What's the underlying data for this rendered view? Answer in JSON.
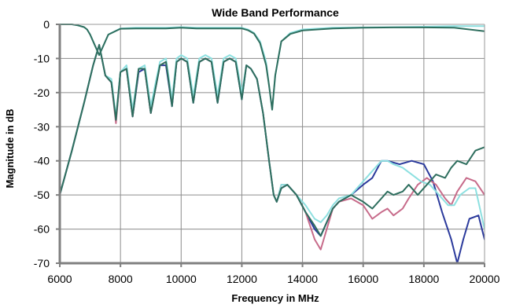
{
  "chart_data": {
    "type": "line",
    "title": "Wide Band Performance",
    "xlabel": "Frequency in MHz",
    "ylabel": "Magnitude in dB",
    "xlim": [
      6000,
      20000
    ],
    "ylim": [
      -70,
      0
    ],
    "x_ticks": [
      "6000",
      "8000",
      "10000",
      "12000",
      "14000",
      "16000",
      "18000",
      "20000"
    ],
    "y_ticks": [
      "0",
      "-10",
      "-20",
      "-30",
      "-40",
      "-50",
      "-60",
      "-70"
    ],
    "grid": true,
    "legend": "none",
    "series": [
      {
        "color": "#2b3a9c",
        "x": [
          6000,
          6400,
          6800,
          7100,
          7300,
          7500,
          7700,
          7850,
          8000,
          8200,
          8400,
          8600,
          8800,
          9000,
          9300,
          9500,
          9700,
          9850,
          10000,
          10200,
          10400,
          10600,
          10800,
          11000,
          11200,
          11400,
          11600,
          11800,
          12000,
          12150,
          12300,
          12500,
          12700,
          12900,
          13050,
          13150,
          13300,
          13500,
          13800,
          14100,
          14400,
          14600,
          14800,
          15000,
          15200,
          15600,
          16000,
          16300,
          16600,
          16800,
          17200,
          17600,
          18000,
          18300,
          18600,
          18900,
          19100,
          19300,
          19500,
          19800,
          20000
        ],
        "y": [
          -50,
          -37,
          -23,
          -12,
          -6,
          -15,
          -17,
          -28,
          -14,
          -13,
          -27,
          -14,
          -13,
          -26,
          -12,
          -12,
          -24,
          -11,
          -10,
          -11,
          -23,
          -11,
          -10,
          -11,
          -23,
          -11,
          -10,
          -11,
          -22,
          -12,
          -13,
          -16,
          -26,
          -40,
          -50,
          -52,
          -48,
          -47,
          -50,
          -55,
          -60,
          -62,
          -58,
          -54,
          -52,
          -50,
          -47,
          -45,
          -40,
          -40,
          -41,
          -40,
          -41,
          -46,
          -55,
          -63,
          -70,
          -63,
          -57,
          -56,
          -63
        ]
      },
      {
        "color": "#c76b8a",
        "x": [
          6000,
          6400,
          6800,
          7100,
          7300,
          7500,
          7700,
          7850,
          8000,
          8200,
          8400,
          8600,
          8800,
          9000,
          9300,
          9500,
          9700,
          9850,
          10000,
          10200,
          10400,
          10600,
          10800,
          11000,
          11200,
          11400,
          11600,
          11800,
          12000,
          12150,
          12300,
          12500,
          12700,
          12900,
          13050,
          13150,
          13300,
          13500,
          13800,
          14100,
          14400,
          14600,
          14800,
          15000,
          15200,
          15600,
          16000,
          16300,
          16600,
          16800,
          17000,
          17300,
          17500,
          17800,
          18100,
          18400,
          18700,
          18900,
          19100,
          19400,
          19700,
          20000
        ],
        "y": [
          -50,
          -37,
          -23,
          -12,
          -6,
          -15,
          -17,
          -29,
          -14,
          -13,
          -27,
          -13,
          -13,
          -26,
          -12,
          -11,
          -22,
          -11,
          -10,
          -11,
          -22,
          -11,
          -10,
          -11,
          -22,
          -11,
          -10,
          -11,
          -21,
          -12,
          -13,
          -16,
          -26,
          -40,
          -50,
          -52,
          -47,
          -47,
          -50,
          -55,
          -63,
          -66,
          -60,
          -54,
          -52,
          -51,
          -53,
          -57,
          -55,
          -54,
          -56,
          -54,
          -51,
          -47,
          -45,
          -47,
          -51,
          -53,
          -49,
          -45,
          -46,
          -50
        ]
      },
      {
        "color": "#8de0e0",
        "x": [
          6000,
          6400,
          6800,
          7100,
          7300,
          7500,
          7700,
          7850,
          8000,
          8200,
          8400,
          8600,
          8800,
          9000,
          9300,
          9500,
          9700,
          9850,
          10000,
          10200,
          10400,
          10600,
          10800,
          11000,
          11200,
          11400,
          11600,
          11800,
          12000,
          12150,
          12300,
          12500,
          12700,
          12900,
          13050,
          13150,
          13300,
          13500,
          13800,
          14100,
          14400,
          14600,
          14800,
          15000,
          15200,
          15600,
          16000,
          16300,
          16600,
          16800,
          17000,
          17300,
          17600,
          17900,
          18200,
          18500,
          18800,
          19000,
          19200,
          19500,
          19700,
          20000
        ],
        "y": [
          -50,
          -37,
          -23,
          -12,
          -6,
          -15,
          -16,
          -27,
          -14,
          -12,
          -25,
          -13,
          -12,
          -24,
          -11,
          -10,
          -22,
          -10,
          -9,
          -10,
          -21,
          -10,
          -9,
          -10,
          -21,
          -10,
          -9,
          -10,
          -20,
          -12,
          -13,
          -16,
          -26,
          -40,
          -50,
          -52,
          -47,
          -47,
          -50,
          -53,
          -57,
          -58,
          -56,
          -53,
          -51,
          -50,
          -46,
          -43,
          -40,
          -40,
          -41,
          -42,
          -44,
          -46,
          -47,
          -50,
          -53,
          -53,
          -50,
          -48,
          -48,
          -60
        ]
      },
      {
        "color": "#2e6e5e",
        "x": [
          6000,
          6400,
          6800,
          7100,
          7300,
          7500,
          7700,
          7850,
          8000,
          8200,
          8400,
          8600,
          8800,
          9000,
          9300,
          9500,
          9700,
          9850,
          10000,
          10200,
          10400,
          10600,
          10800,
          11000,
          11200,
          11400,
          11600,
          11800,
          12000,
          12150,
          12300,
          12500,
          12700,
          12900,
          13050,
          13150,
          13300,
          13500,
          13800,
          14100,
          14400,
          14600,
          14800,
          15000,
          15200,
          15600,
          16000,
          16300,
          16600,
          16800,
          17000,
          17300,
          17500,
          17800,
          18100,
          18400,
          18700,
          18900,
          19100,
          19400,
          19700,
          20000
        ],
        "y": [
          -50,
          -37,
          -23,
          -12,
          -6,
          -15,
          -17,
          -28,
          -14,
          -13,
          -27,
          -13,
          -13,
          -26,
          -12,
          -11,
          -24,
          -11,
          -10,
          -11,
          -23,
          -11,
          -10,
          -11,
          -23,
          -11,
          -10,
          -11,
          -22,
          -12,
          -13,
          -16,
          -26,
          -40,
          -50,
          -52,
          -48,
          -47,
          -50,
          -55,
          -59,
          -62,
          -58,
          -54,
          -52,
          -50,
          -52,
          -54,
          -51,
          -49,
          -50,
          -49,
          -47,
          -50,
          -47,
          -44,
          -45,
          -42,
          -40,
          -41,
          -37,
          -36
        ]
      },
      {
        "color": "#8de0e0",
        "x": [
          6000,
          6200,
          6400,
          6600,
          6800,
          6900,
          7000,
          7100,
          7300,
          7600,
          8000,
          8500,
          9000,
          9500,
          10000,
          10500,
          11000,
          11500,
          12000,
          12200,
          12400,
          12600,
          12800,
          12900,
          13000,
          13100,
          13300,
          13600,
          14000,
          15000,
          16000,
          17000,
          18000,
          19000,
          20000
        ],
        "y": [
          0,
          0,
          0,
          -0.3,
          -0.8,
          -1.5,
          -3,
          -5,
          -9,
          -3,
          -1.2,
          -1,
          -1,
          -1,
          -0.8,
          -1,
          -1,
          -1,
          -1,
          -1.5,
          -2.5,
          -5,
          -11,
          -18,
          -25,
          -15,
          -5,
          -2.5,
          -1.5,
          -1,
          -0.9,
          -0.8,
          -0.7,
          -0.5,
          -0.5
        ]
      },
      {
        "color": "#2e6e5e",
        "x": [
          6000,
          6200,
          6400,
          6600,
          6800,
          6900,
          7000,
          7100,
          7300,
          7600,
          8000,
          8500,
          9000,
          9500,
          10000,
          10500,
          11000,
          11500,
          12000,
          12200,
          12400,
          12600,
          12800,
          12900,
          13000,
          13100,
          13300,
          13600,
          14000,
          15000,
          16000,
          17000,
          18000,
          19000,
          20000
        ],
        "y": [
          0,
          0,
          0,
          -0.3,
          -0.8,
          -1.5,
          -3,
          -5,
          -9,
          -3,
          -1.3,
          -1.2,
          -1.2,
          -1.2,
          -1,
          -1.2,
          -1.2,
          -1.2,
          -1.2,
          -1.7,
          -2.7,
          -5.5,
          -12,
          -18,
          -25,
          -15,
          -5,
          -2.8,
          -1.8,
          -1.2,
          -1,
          -0.9,
          -0.9,
          -1,
          -2
        ]
      }
    ]
  }
}
